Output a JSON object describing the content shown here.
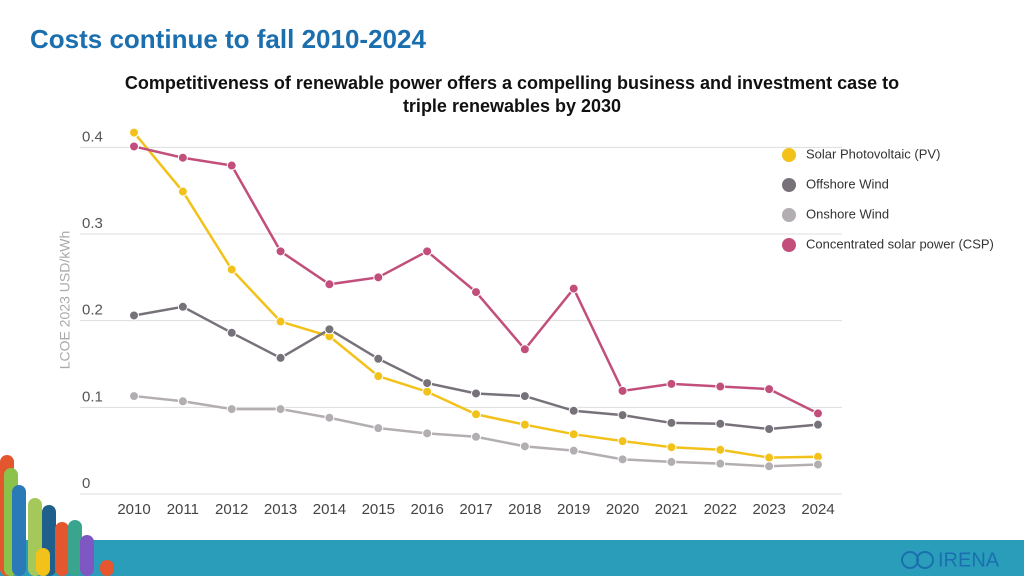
{
  "chart_data": {
    "type": "line",
    "title": "Costs continue to fall 2010-2024",
    "subtitle": "Competitiveness of renewable power offers a compelling business and investment case to triple renewables by 2030",
    "y_label": "LCOE 2023 USD/kWh",
    "categories": [
      "2010",
      "2011",
      "2012",
      "2013",
      "2014",
      "2015",
      "2016",
      "2017",
      "2018",
      "2019",
      "2020",
      "2021",
      "2022",
      "2023",
      "2024"
    ],
    "series": [
      {
        "name": "Solar Photovoltaic (PV)",
        "color": "#f2c21b",
        "values": [
          0.417,
          0.349,
          0.259,
          0.199,
          0.182,
          0.136,
          0.118,
          0.092,
          0.08,
          0.069,
          0.061,
          0.054,
          0.051,
          0.042,
          0.043
        ]
      },
      {
        "name": "Offshore Wind",
        "color": "#77727a",
        "values": [
          0.206,
          0.216,
          0.186,
          0.157,
          0.19,
          0.156,
          0.128,
          0.116,
          0.113,
          0.096,
          0.091,
          0.082,
          0.081,
          0.075,
          0.08
        ]
      },
      {
        "name": "Onshore Wind",
        "color": "#b2aeb2",
        "values": [
          0.113,
          0.107,
          0.098,
          0.098,
          0.088,
          0.076,
          0.07,
          0.066,
          0.055,
          0.05,
          0.04,
          0.037,
          0.035,
          0.032,
          0.034
        ]
      },
      {
        "name": "Concentrated solar power (CSP)",
        "color": "#c24f7b",
        "values": [
          0.401,
          0.388,
          0.379,
          0.28,
          0.242,
          0.25,
          0.28,
          0.233,
          0.167,
          0.237,
          0.119,
          0.127,
          0.124,
          0.121,
          0.093
        ]
      }
    ],
    "ylim": [
      0,
      0.42
    ],
    "yticks": [
      0,
      0.1,
      0.2,
      0.3,
      0.4
    ],
    "grid": true,
    "legend": "right"
  },
  "logo": "IRENA"
}
